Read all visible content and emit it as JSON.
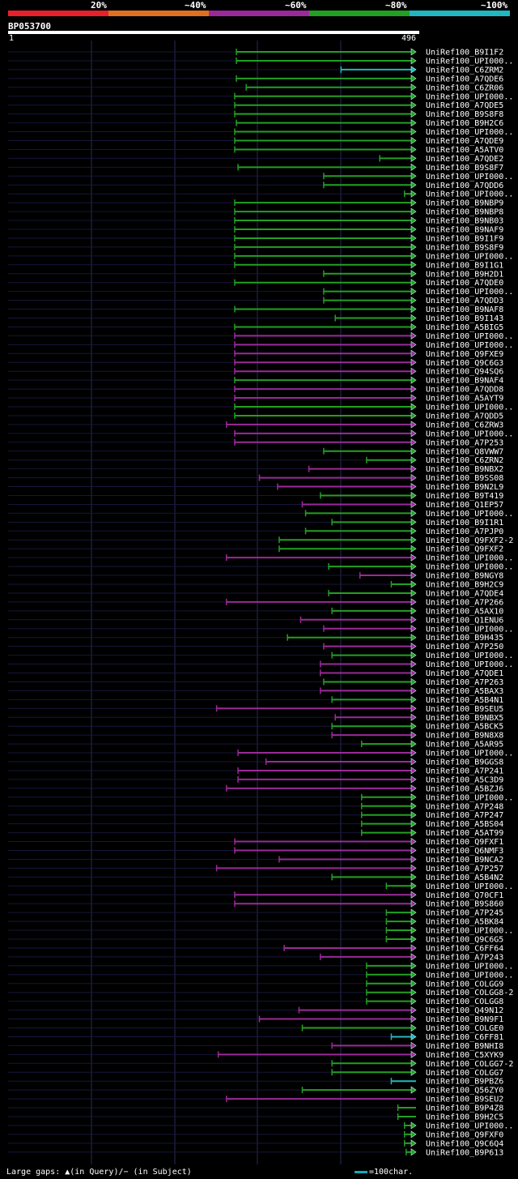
{
  "query": {
    "name": "BP053700",
    "start": "1",
    "end": "496",
    "length": 496
  },
  "identity_legend": [
    {
      "label": "20%",
      "color": "#e8202a"
    },
    {
      "label": "~40%",
      "color": "#e07020"
    },
    {
      "label": "~60%",
      "color": "#9a2a9a"
    },
    {
      "label": "~80%",
      "color": "#22a022"
    },
    {
      "label": "~100%",
      "color": "#20b8c0"
    }
  ],
  "footer": {
    "gaps_text": "Large gaps: ▲(in Query)/− (in Subject)",
    "scale_text": "=100char."
  },
  "chart_data": {
    "type": "alignment",
    "x_range": [
      1,
      496
    ],
    "hits": [
      {
        "label": "UniRef100_B9I1F2",
        "start": 278,
        "end": 496,
        "color": "green",
        "arrow": "right"
      },
      {
        "label": "UniRef100_UPI000..",
        "start": 278,
        "end": 496,
        "color": "green",
        "arrow": "right"
      },
      {
        "label": "UniRef100_C6ZRM2",
        "start": 405,
        "end": 496,
        "color": "cyan",
        "arrow": "right"
      },
      {
        "label": "UniRef100_A7QDE6",
        "start": 278,
        "end": 496,
        "color": "green",
        "arrow": "right"
      },
      {
        "label": "UniRef100_C6ZR06",
        "start": 290,
        "end": 496,
        "color": "green",
        "arrow": "right"
      },
      {
        "label": "UniRef100_UPI000..",
        "start": 276,
        "end": 496,
        "color": "green",
        "arrow": "right"
      },
      {
        "label": "UniRef100_A7QDE5",
        "start": 276,
        "end": 496,
        "color": "green",
        "arrow": "right"
      },
      {
        "label": "UniRef100_B9S8F8",
        "start": 276,
        "end": 496,
        "color": "green",
        "arrow": "right"
      },
      {
        "label": "UniRef100_B9H2C6",
        "start": 278,
        "end": 496,
        "color": "green",
        "arrow": "right"
      },
      {
        "label": "UniRef100_UPI000..",
        "start": 276,
        "end": 496,
        "color": "green",
        "arrow": "right"
      },
      {
        "label": "UniRef100_A7QDE9",
        "start": 276,
        "end": 496,
        "color": "green",
        "arrow": "right"
      },
      {
        "label": "UniRef100_A5ATV0",
        "start": 276,
        "end": 496,
        "color": "green",
        "arrow": "right"
      },
      {
        "label": "UniRef100_A7QDE2",
        "start": 452,
        "end": 496,
        "color": "green",
        "arrow": "right"
      },
      {
        "label": "UniRef100_B9S8F7",
        "start": 280,
        "end": 496,
        "color": "green",
        "arrow": "right"
      },
      {
        "label": "UniRef100_UPI000..",
        "start": 384,
        "end": 496,
        "color": "green",
        "arrow": "right"
      },
      {
        "label": "UniRef100_A7QDD6",
        "start": 384,
        "end": 496,
        "color": "green",
        "arrow": "right"
      },
      {
        "label": "UniRef100_UPI000..",
        "start": 482,
        "end": 496,
        "color": "green",
        "arrow": "right"
      },
      {
        "label": "UniRef100_B9NBP9",
        "start": 276,
        "end": 496,
        "color": "green",
        "arrow": "right"
      },
      {
        "label": "UniRef100_B9NBP8",
        "start": 276,
        "end": 496,
        "color": "green",
        "arrow": "right"
      },
      {
        "label": "UniRef100_B9NB03",
        "start": 276,
        "end": 496,
        "color": "green",
        "arrow": "right"
      },
      {
        "label": "UniRef100_B9NAF9",
        "start": 276,
        "end": 496,
        "color": "green",
        "arrow": "right"
      },
      {
        "label": "UniRef100_B9I1F9",
        "start": 276,
        "end": 496,
        "color": "green",
        "arrow": "right"
      },
      {
        "label": "UniRef100_B9S8F9",
        "start": 276,
        "end": 496,
        "color": "green",
        "arrow": "right"
      },
      {
        "label": "UniRef100_UPI000..",
        "start": 276,
        "end": 496,
        "color": "green",
        "arrow": "right"
      },
      {
        "label": "UniRef100_B9I1G1",
        "start": 276,
        "end": 496,
        "color": "green",
        "arrow": "right"
      },
      {
        "label": "UniRef100_B9H2D1",
        "start": 384,
        "end": 496,
        "color": "green",
        "arrow": "right"
      },
      {
        "label": "UniRef100_A7QDE0",
        "start": 276,
        "end": 496,
        "color": "green",
        "arrow": "right"
      },
      {
        "label": "UniRef100_UPI000..",
        "start": 384,
        "end": 496,
        "color": "green",
        "arrow": "right"
      },
      {
        "label": "UniRef100_A7QDD3",
        "start": 384,
        "end": 496,
        "color": "green",
        "arrow": "right"
      },
      {
        "label": "UniRef100_B9NAF8",
        "start": 276,
        "end": 496,
        "color": "green",
        "arrow": "right"
      },
      {
        "label": "UniRef100_B9I143",
        "start": 398,
        "end": 496,
        "color": "green",
        "arrow": "right"
      },
      {
        "label": "UniRef100_A5BIG5",
        "start": 276,
        "end": 496,
        "color": "green",
        "arrow": "right"
      },
      {
        "label": "UniRef100_UPI000..",
        "start": 276,
        "end": 496,
        "color": "purple",
        "arrow": "right"
      },
      {
        "label": "UniRef100_UPI000..",
        "start": 276,
        "end": 496,
        "color": "purple",
        "arrow": "right"
      },
      {
        "label": "UniRef100_Q9FXE9",
        "start": 276,
        "end": 496,
        "color": "purple",
        "arrow": "right"
      },
      {
        "label": "UniRef100_Q9C6G3",
        "start": 276,
        "end": 496,
        "color": "purple",
        "arrow": "right"
      },
      {
        "label": "UniRef100_Q94SQ6",
        "start": 276,
        "end": 496,
        "color": "purple",
        "arrow": "right"
      },
      {
        "label": "UniRef100_B9NAF4",
        "start": 276,
        "end": 496,
        "color": "green",
        "arrow": "right"
      },
      {
        "label": "UniRef100_A7QDD8",
        "start": 276,
        "end": 496,
        "color": "purple",
        "arrow": "right"
      },
      {
        "label": "UniRef100_A5AYT9",
        "start": 276,
        "end": 496,
        "color": "purple",
        "arrow": "right"
      },
      {
        "label": "UniRef100_UPI000..",
        "start": 276,
        "end": 496,
        "color": "green",
        "arrow": "right"
      },
      {
        "label": "UniRef100_A7QDD5",
        "start": 276,
        "end": 496,
        "color": "green",
        "arrow": "right"
      },
      {
        "label": "UniRef100_C6ZRW3",
        "start": 266,
        "end": 496,
        "color": "purple",
        "arrow": "right"
      },
      {
        "label": "UniRef100_UPI000..",
        "start": 276,
        "end": 496,
        "color": "purple",
        "arrow": "right"
      },
      {
        "label": "UniRef100_A7P253",
        "start": 276,
        "end": 496,
        "color": "purple",
        "arrow": "right"
      },
      {
        "label": "UniRef100_Q8VWW7",
        "start": 384,
        "end": 496,
        "color": "green",
        "arrow": "right"
      },
      {
        "label": "UniRef100_C6ZRN2",
        "start": 436,
        "end": 496,
        "color": "green",
        "arrow": "right"
      },
      {
        "label": "UniRef100_B9NBX2",
        "start": 366,
        "end": 496,
        "color": "purple",
        "arrow": "right"
      },
      {
        "label": "UniRef100_B9SS08",
        "start": 306,
        "end": 496,
        "color": "purple",
        "arrow": "right"
      },
      {
        "label": "UniRef100_B9N2L9",
        "start": 328,
        "end": 496,
        "color": "purple",
        "arrow": "right"
      },
      {
        "label": "UniRef100_B9T419",
        "start": 380,
        "end": 496,
        "color": "green",
        "arrow": "right"
      },
      {
        "label": "UniRef100_Q1EP57",
        "start": 358,
        "end": 496,
        "color": "purple",
        "arrow": "right"
      },
      {
        "label": "UniRef100_UPI000..",
        "start": 362,
        "end": 496,
        "color": "green",
        "arrow": "right"
      },
      {
        "label": "UniRef100_B9I1R1",
        "start": 394,
        "end": 496,
        "color": "green",
        "arrow": "right"
      },
      {
        "label": "UniRef100_A7PJP0",
        "start": 362,
        "end": 496,
        "color": "green",
        "arrow": "right"
      },
      {
        "label": "UniRef100_Q9FXF2-2",
        "start": 330,
        "end": 496,
        "color": "green",
        "arrow": "right"
      },
      {
        "label": "UniRef100_Q9FXF2",
        "start": 330,
        "end": 496,
        "color": "green",
        "arrow": "right"
      },
      {
        "label": "UniRef100_UPI000..",
        "start": 266,
        "end": 496,
        "color": "purple",
        "arrow": "right"
      },
      {
        "label": "UniRef100_UPI000..",
        "start": 390,
        "end": 496,
        "color": "green",
        "arrow": "right"
      },
      {
        "label": "UniRef100_B9NGY8",
        "start": 428,
        "end": 496,
        "color": "purple",
        "arrow": "right"
      },
      {
        "label": "UniRef100_B9H2C9",
        "start": 466,
        "end": 496,
        "color": "green",
        "arrow": "right"
      },
      {
        "label": "UniRef100_A7QDE4",
        "start": 390,
        "end": 496,
        "color": "green",
        "arrow": "right"
      },
      {
        "label": "UniRef100_A7P266",
        "start": 266,
        "end": 496,
        "color": "purple",
        "arrow": "right"
      },
      {
        "label": "UniRef100_A5AX10",
        "start": 394,
        "end": 496,
        "color": "green",
        "arrow": "right"
      },
      {
        "label": "UniRef100_Q1ENU6",
        "start": 356,
        "end": 496,
        "color": "purple",
        "arrow": "right"
      },
      {
        "label": "UniRef100_UPI000..",
        "start": 384,
        "end": 496,
        "color": "purple",
        "arrow": "right"
      },
      {
        "label": "UniRef100_B9H435",
        "start": 340,
        "end": 496,
        "color": "green",
        "arrow": "right"
      },
      {
        "label": "UniRef100_A7P250",
        "start": 384,
        "end": 496,
        "color": "purple",
        "arrow": "right"
      },
      {
        "label": "UniRef100_UPI000..",
        "start": 394,
        "end": 496,
        "color": "green",
        "arrow": "right"
      },
      {
        "label": "UniRef100_UPI000..",
        "start": 380,
        "end": 496,
        "color": "purple",
        "arrow": "right"
      },
      {
        "label": "UniRef100_A7QDE1",
        "start": 380,
        "end": 496,
        "color": "purple",
        "arrow": "right"
      },
      {
        "label": "UniRef100_A7P263",
        "start": 384,
        "end": 496,
        "color": "green",
        "arrow": "right"
      },
      {
        "label": "UniRef100_A5BAX3",
        "start": 380,
        "end": 496,
        "color": "purple",
        "arrow": "right"
      },
      {
        "label": "UniRef100_A5B4N1",
        "start": 394,
        "end": 496,
        "color": "green",
        "arrow": "right"
      },
      {
        "label": "UniRef100_B9SEU5",
        "start": 254,
        "end": 496,
        "color": "purple",
        "arrow": "right"
      },
      {
        "label": "UniRef100_B9NBX5",
        "start": 398,
        "end": 496,
        "color": "purple",
        "arrow": "right"
      },
      {
        "label": "UniRef100_A5BCK5",
        "start": 394,
        "end": 496,
        "color": "green",
        "arrow": "right"
      },
      {
        "label": "UniRef100_B9N8X8",
        "start": 394,
        "end": 496,
        "color": "purple",
        "arrow": "right"
      },
      {
        "label": "UniRef100_A5AR95",
        "start": 430,
        "end": 496,
        "color": "green",
        "arrow": "right"
      },
      {
        "label": "UniRef100_UPI000..",
        "start": 280,
        "end": 496,
        "color": "purple",
        "arrow": "right"
      },
      {
        "label": "UniRef100_B9GGS8",
        "start": 314,
        "end": 496,
        "color": "purple",
        "arrow": "right"
      },
      {
        "label": "UniRef100_A7P241",
        "start": 280,
        "end": 496,
        "color": "purple",
        "arrow": "right"
      },
      {
        "label": "UniRef100_A5C3D9",
        "start": 280,
        "end": 496,
        "color": "purple",
        "arrow": "right"
      },
      {
        "label": "UniRef100_A5BZJ6",
        "start": 266,
        "end": 496,
        "color": "purple",
        "arrow": "right"
      },
      {
        "label": "UniRef100_UPI000..",
        "start": 430,
        "end": 496,
        "color": "green",
        "arrow": "right"
      },
      {
        "label": "UniRef100_A7P248",
        "start": 430,
        "end": 496,
        "color": "green",
        "arrow": "right"
      },
      {
        "label": "UniRef100_A7P247",
        "start": 430,
        "end": 496,
        "color": "green",
        "arrow": "right"
      },
      {
        "label": "UniRef100_A5BS04",
        "start": 430,
        "end": 496,
        "color": "green",
        "arrow": "right"
      },
      {
        "label": "UniRef100_A5AT99",
        "start": 430,
        "end": 496,
        "color": "green",
        "arrow": "right"
      },
      {
        "label": "UniRef100_Q9FXF1",
        "start": 276,
        "end": 496,
        "color": "purple",
        "arrow": "right"
      },
      {
        "label": "UniRef100_Q6NMF3",
        "start": 276,
        "end": 496,
        "color": "purple",
        "arrow": "right"
      },
      {
        "label": "UniRef100_B9NCA2",
        "start": 330,
        "end": 496,
        "color": "purple",
        "arrow": "right"
      },
      {
        "label": "UniRef100_A7P257",
        "start": 254,
        "end": 496,
        "color": "purple",
        "arrow": "right"
      },
      {
        "label": "UniRef100_A5B4N2",
        "start": 394,
        "end": 496,
        "color": "green",
        "arrow": "right"
      },
      {
        "label": "UniRef100_UPI000..",
        "start": 460,
        "end": 496,
        "color": "green",
        "arrow": "right"
      },
      {
        "label": "UniRef100_Q70CF1",
        "start": 276,
        "end": 496,
        "color": "purple",
        "arrow": "right"
      },
      {
        "label": "UniRef100_B9S860",
        "start": 276,
        "end": 496,
        "color": "purple",
        "arrow": "right"
      },
      {
        "label": "UniRef100_A7P245",
        "start": 460,
        "end": 496,
        "color": "green",
        "arrow": "right"
      },
      {
        "label": "UniRef100_A5BK84",
        "start": 460,
        "end": 496,
        "color": "green",
        "arrow": "right"
      },
      {
        "label": "UniRef100_UPI000..",
        "start": 460,
        "end": 496,
        "color": "green",
        "arrow": "right"
      },
      {
        "label": "UniRef100_Q9C6G5",
        "start": 460,
        "end": 496,
        "color": "green",
        "arrow": "right"
      },
      {
        "label": "UniRef100_C6FF64",
        "start": 336,
        "end": 496,
        "color": "purple",
        "arrow": "right"
      },
      {
        "label": "UniRef100_A7P243",
        "start": 380,
        "end": 496,
        "color": "purple",
        "arrow": "right"
      },
      {
        "label": "UniRef100_UPI000..",
        "start": 436,
        "end": 496,
        "color": "green",
        "arrow": "right"
      },
      {
        "label": "UniRef100_UPI000..",
        "start": 436,
        "end": 496,
        "color": "green",
        "arrow": "right"
      },
      {
        "label": "UniRef100_COLGG9",
        "start": 436,
        "end": 496,
        "color": "green",
        "arrow": "right"
      },
      {
        "label": "UniRef100_COLGG8-2",
        "start": 436,
        "end": 496,
        "color": "green",
        "arrow": "right"
      },
      {
        "label": "UniRef100_COLGG8",
        "start": 436,
        "end": 496,
        "color": "green",
        "arrow": "right"
      },
      {
        "label": "UniRef100_Q49N12",
        "start": 354,
        "end": 496,
        "color": "purple",
        "arrow": "right"
      },
      {
        "label": "UniRef100_B9N9F1",
        "start": 306,
        "end": 496,
        "color": "purple",
        "arrow": "right"
      },
      {
        "label": "UniRef100_COLGE0",
        "start": 358,
        "end": 496,
        "color": "green",
        "arrow": "right"
      },
      {
        "label": "UniRef100_C6FF81",
        "start": 466,
        "end": 496,
        "color": "cyan",
        "arrow": "right"
      },
      {
        "label": "UniRef100_B9NHI8",
        "start": 394,
        "end": 496,
        "color": "purple",
        "arrow": "right"
      },
      {
        "label": "UniRef100_C5XYK9",
        "start": 256,
        "end": 496,
        "color": "purple",
        "arrow": "right"
      },
      {
        "label": "UniRef100_COLGG7-2",
        "start": 394,
        "end": 496,
        "color": "green",
        "arrow": "right"
      },
      {
        "label": "UniRef100_COLGG7",
        "start": 394,
        "end": 496,
        "color": "green",
        "arrow": "right"
      },
      {
        "label": "UniRef100_B9PBZ6",
        "start": 466,
        "end": 496,
        "color": "cyan",
        "arrow": "none"
      },
      {
        "label": "UniRef100_Q56ZY0",
        "start": 358,
        "end": 496,
        "color": "green",
        "arrow": "right"
      },
      {
        "label": "UniRef100_B9SEU2",
        "start": 266,
        "end": 496,
        "color": "purple",
        "arrow": "none"
      },
      {
        "label": "UniRef100_B9P4Z8",
        "start": 474,
        "end": 496,
        "color": "green",
        "arrow": "none"
      },
      {
        "label": "UniRef100_B9H2C5",
        "start": 474,
        "end": 496,
        "color": "green",
        "arrow": "none"
      },
      {
        "label": "UniRef100_UPI000..",
        "start": 482,
        "end": 496,
        "color": "green",
        "arrow": "right"
      },
      {
        "label": "UniRef100_Q9FXF0",
        "start": 482,
        "end": 496,
        "color": "green",
        "arrow": "right"
      },
      {
        "label": "UniRef100_Q9C6Q4",
        "start": 482,
        "end": 496,
        "color": "green",
        "arrow": "right"
      },
      {
        "label": "UniRef100_B9P613",
        "start": 484,
        "end": 496,
        "color": "green",
        "arrow": "right"
      }
    ]
  }
}
